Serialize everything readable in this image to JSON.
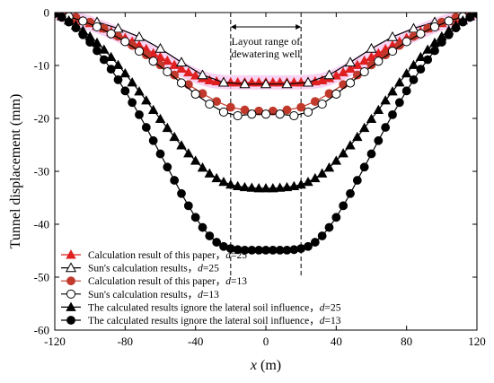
{
  "chart_data": {
    "type": "line",
    "xlabel": "x (m)",
    "ylabel": "Tunnel displacement (mm)",
    "xlim": [
      -120,
      120
    ],
    "ylim": [
      -60,
      0
    ],
    "xticks": [
      -120,
      -80,
      -40,
      0,
      40,
      80,
      120
    ],
    "yticks": [
      0,
      -10,
      -20,
      -30,
      -40,
      -50,
      -60
    ],
    "annotation": {
      "text_line1": "Layout range of",
      "text_line2": "dewatering well",
      "x_range": [
        -20,
        20
      ]
    },
    "legend_position": "bottom-left",
    "series": [
      {
        "name": "Calculation result of this paper，d=25",
        "label_text": "Calculation result of this paper，",
        "label_var": "d",
        "label_val": "=25",
        "marker": "triangle-filled",
        "color": "#e02020",
        "x": [
          -120,
          -116,
          -112,
          -108,
          -104,
          -100,
          -96,
          -92,
          -88,
          -84,
          -80,
          -76,
          -72,
          -68,
          -64,
          -60,
          -56,
          -52,
          -48,
          -44,
          -40,
          -36,
          -32,
          -28,
          -24,
          -20,
          -16,
          -12,
          -8,
          -4,
          0,
          4,
          8,
          12,
          16,
          20,
          24,
          28,
          32,
          36,
          40,
          44,
          48,
          52,
          56,
          60,
          64,
          68,
          72,
          76,
          80,
          84,
          88,
          92,
          96,
          100,
          104,
          108,
          112,
          116,
          120
        ],
        "y": [
          0,
          -0.4,
          -0.8,
          -1.2,
          -1.6,
          -2.0,
          -2.5,
          -3.0,
          -3.6,
          -4.2,
          -4.8,
          -5.5,
          -6.2,
          -6.9,
          -7.7,
          -8.4,
          -9.1,
          -9.9,
          -10.6,
          -11.3,
          -11.9,
          -12.4,
          -12.8,
          -13.0,
          -13.1,
          -13.2,
          -13.2,
          -13.2,
          -13.2,
          -13.2,
          -13.2,
          -13.2,
          -13.2,
          -13.2,
          -13.2,
          -13.2,
          -13.1,
          -13.0,
          -12.8,
          -12.4,
          -11.9,
          -11.3,
          -10.6,
          -9.9,
          -9.1,
          -8.4,
          -7.7,
          -6.9,
          -6.2,
          -5.5,
          -4.8,
          -4.2,
          -3.6,
          -3.0,
          -2.5,
          -2.0,
          -1.6,
          -1.2,
          -0.8,
          -0.4,
          0
        ]
      },
      {
        "name": "Sun's calculation results，d=25",
        "label_text": "Sun's calculation results，",
        "label_var": "d",
        "label_val": "=25",
        "marker": "triangle-open",
        "color": "#000000",
        "x": [
          -120,
          -108,
          -96,
          -84,
          -72,
          -60,
          -48,
          -36,
          -24,
          -12,
          0,
          12,
          24,
          36,
          48,
          60,
          72,
          84,
          96,
          108,
          120
        ],
        "y": [
          0,
          -0.8,
          -1.8,
          -3.0,
          -4.6,
          -6.8,
          -9.4,
          -11.8,
          -13.2,
          -13.5,
          -13.5,
          -13.5,
          -13.2,
          -11.8,
          -9.4,
          -6.8,
          -4.6,
          -3.0,
          -1.8,
          -0.8,
          0
        ]
      },
      {
        "name": "Calculation result of this paper，d=13",
        "label_text": "Calculation result of this paper，",
        "label_var": "d",
        "label_val": "=13",
        "marker": "circle-filled",
        "color": "#c0392b",
        "x": [
          -116,
          -108,
          -100,
          -92,
          -84,
          -76,
          -68,
          -60,
          -52,
          -44,
          -36,
          -28,
          -20,
          -12,
          -4,
          4,
          12,
          20,
          28,
          36,
          44,
          52,
          60,
          68,
          76,
          84,
          92,
          100,
          108,
          116
        ],
        "y": [
          -0.3,
          -0.9,
          -1.8,
          -3.0,
          -4.5,
          -6.2,
          -8.0,
          -9.9,
          -11.8,
          -13.6,
          -15.3,
          -16.8,
          -17.9,
          -18.4,
          -18.6,
          -18.6,
          -18.4,
          -17.9,
          -16.8,
          -15.3,
          -13.6,
          -11.8,
          -9.9,
          -8.0,
          -6.2,
          -4.5,
          -3.0,
          -1.8,
          -0.9,
          -0.3
        ]
      },
      {
        "name": "Sun's calculation results，d=13",
        "label_text": "Sun's calculation results，",
        "label_var": "d",
        "label_val": "=13",
        "marker": "circle-open",
        "color": "#000000",
        "x": [
          -112,
          -104,
          -96,
          -88,
          -80,
          -72,
          -64,
          -56,
          -48,
          -40,
          -32,
          -24,
          -16,
          -8,
          0,
          8,
          16,
          24,
          32,
          40,
          48,
          56,
          64,
          72,
          80,
          88,
          96,
          104,
          112
        ],
        "y": [
          -0.8,
          -1.6,
          -2.7,
          -4.0,
          -5.5,
          -7.3,
          -9.2,
          -11.2,
          -13.3,
          -15.4,
          -17.3,
          -18.8,
          -19.5,
          -19.2,
          -19.2,
          -19.2,
          -19.5,
          -18.8,
          -17.3,
          -15.4,
          -13.3,
          -11.2,
          -9.2,
          -7.3,
          -5.5,
          -4.0,
          -2.7,
          -1.6,
          -0.8
        ]
      },
      {
        "name": "The calculated results ignore the lateral soil influence，d=25",
        "label_text": "The calculated results ignore the lateral soil influence，",
        "label_var": "d",
        "label_val": "=25",
        "marker": "triangle-filled",
        "color": "#000000",
        "x": [
          -120,
          -116,
          -112,
          -108,
          -104,
          -100,
          -96,
          -92,
          -88,
          -84,
          -80,
          -76,
          -72,
          -68,
          -64,
          -60,
          -56,
          -52,
          -48,
          -44,
          -40,
          -36,
          -32,
          -28,
          -24,
          -20,
          -16,
          -12,
          -8,
          -4,
          0,
          4,
          8,
          12,
          16,
          20,
          24,
          28,
          32,
          36,
          40,
          44,
          48,
          52,
          56,
          60,
          64,
          68,
          72,
          76,
          80,
          84,
          88,
          92,
          96,
          100,
          104,
          108,
          112,
          116,
          120
        ],
        "y": [
          0,
          -0.7,
          -1.5,
          -2.4,
          -3.4,
          -4.5,
          -5.7,
          -7.0,
          -8.4,
          -9.9,
          -11.5,
          -13.2,
          -14.9,
          -16.6,
          -18.4,
          -20.1,
          -21.8,
          -23.5,
          -25.1,
          -26.6,
          -28.0,
          -29.3,
          -30.4,
          -31.3,
          -32.0,
          -32.5,
          -32.8,
          -33.0,
          -33.1,
          -33.2,
          -33.2,
          -33.2,
          -33.1,
          -33.0,
          -32.8,
          -32.5,
          -32.0,
          -31.3,
          -30.4,
          -29.3,
          -28.0,
          -26.6,
          -25.1,
          -23.5,
          -21.8,
          -20.1,
          -18.4,
          -16.6,
          -14.9,
          -13.2,
          -11.5,
          -9.9,
          -8.4,
          -7.0,
          -5.7,
          -4.5,
          -3.4,
          -2.4,
          -1.5,
          -0.7,
          0
        ]
      },
      {
        "name": "The calculated results ignore the lateral soil influence，d=13",
        "label_text": "The calculated results ignore the lateral soil influence，",
        "label_var": "d",
        "label_val": "=13",
        "marker": "circle-filled",
        "color": "#000000",
        "x": [
          -120,
          -116,
          -112,
          -108,
          -104,
          -100,
          -96,
          -92,
          -88,
          -84,
          -80,
          -76,
          -72,
          -68,
          -64,
          -60,
          -56,
          -52,
          -48,
          -44,
          -40,
          -36,
          -32,
          -28,
          -24,
          -20,
          -16,
          -12,
          -8,
          -4,
          0,
          4,
          8,
          12,
          16,
          20,
          24,
          28,
          32,
          36,
          40,
          44,
          48,
          52,
          56,
          60,
          64,
          68,
          72,
          76,
          80,
          84,
          88,
          92,
          96,
          100,
          104,
          108,
          112,
          116,
          120
        ],
        "y": [
          -0.2,
          -0.9,
          -1.8,
          -2.9,
          -4.2,
          -5.6,
          -7.2,
          -8.9,
          -10.7,
          -12.7,
          -14.8,
          -17.0,
          -19.3,
          -21.7,
          -24.2,
          -26.7,
          -29.2,
          -31.7,
          -34.2,
          -36.5,
          -38.7,
          -40.6,
          -42.2,
          -43.4,
          -44.2,
          -44.6,
          -44.8,
          -44.9,
          -44.9,
          -44.9,
          -44.9,
          -44.9,
          -44.9,
          -44.9,
          -44.8,
          -44.6,
          -44.2,
          -43.4,
          -42.2,
          -40.6,
          -38.7,
          -36.5,
          -34.2,
          -31.7,
          -29.2,
          -26.7,
          -24.2,
          -21.7,
          -19.3,
          -17.0,
          -14.8,
          -12.7,
          -10.7,
          -8.9,
          -7.2,
          -5.6,
          -4.2,
          -2.9,
          -1.8,
          -0.9,
          -0.2
        ]
      }
    ]
  }
}
